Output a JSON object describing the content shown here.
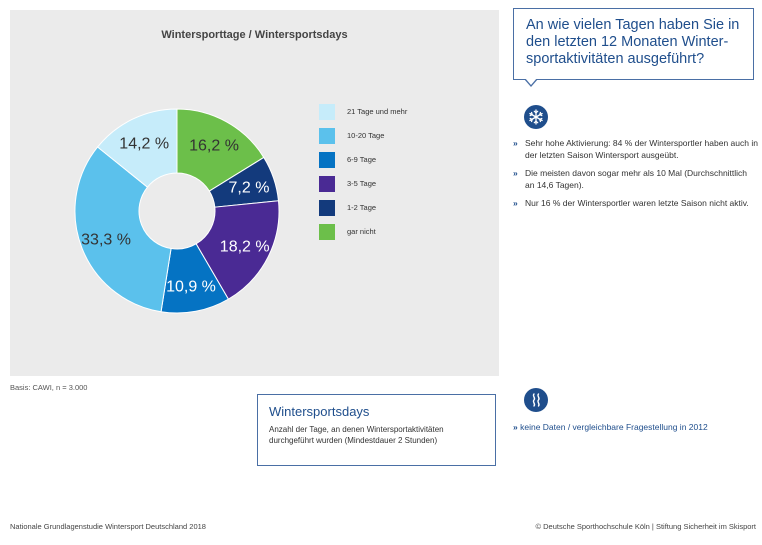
{
  "chart_data": {
    "type": "pie",
    "title": "Wintersporttage / Wintersportsdays",
    "categories": [
      "21 Tage und mehr",
      "10-20 Tage",
      "6-9 Tage",
      "3-5 Tage",
      "1-2 Tage",
      "gar nicht"
    ],
    "values": [
      14.2,
      33.3,
      10.9,
      18.2,
      7.2,
      16.2
    ],
    "value_labels": [
      "14,2 %",
      "33,3 %",
      "10,9 %",
      "18,2 %",
      "7,2 %",
      "16,2 %"
    ],
    "colors": [
      "#c6ecfa",
      "#5bc1ec",
      "#0573c3",
      "#4a2a94",
      "#133a7c",
      "#6cbf4a"
    ],
    "label_colors": [
      "#333333",
      "#333333",
      "#ffffff",
      "#ffffff",
      "#ffffff",
      "#333333"
    ],
    "donut": true,
    "legend_position": "right"
  },
  "basis": "Basis: CAWI, n = 3.000",
  "question": {
    "text": "An wie vielen Tagen haben Sie in den letzten 12 Monaten Winter-sportaktivitäten ausgeführt?"
  },
  "icons": {
    "snowflake": "snowflake-icon",
    "waves": "waves-icon"
  },
  "bullets": [
    "Sehr hohe Aktivierung: 84 % der Wintersportler haben auch in der letzten Saison Wintersport ausgeübt.",
    "Die meisten davon sogar mehr als 10 Mal (Durchschnittlich an 14,6 Tagen).",
    "Nur 16 % der Wintersportler waren letzte Saison nicht aktiv."
  ],
  "bullet_marker": "»",
  "definition": {
    "title": "Wintersportsdays",
    "text": "Anzahl der Tage, an denen Wintersportaktivitäten durchgeführt wurden (Mindestdauer 2 Stunden)"
  },
  "note": "keine Daten / vergleichbare Fragestellung in 2012",
  "footer": {
    "left": "Nationale Grundlagenstudie Wintersport Deutschland 2018",
    "right": "© Deutsche Sporthochschule Köln  |  Stiftung Sicherheit im Skisport"
  }
}
